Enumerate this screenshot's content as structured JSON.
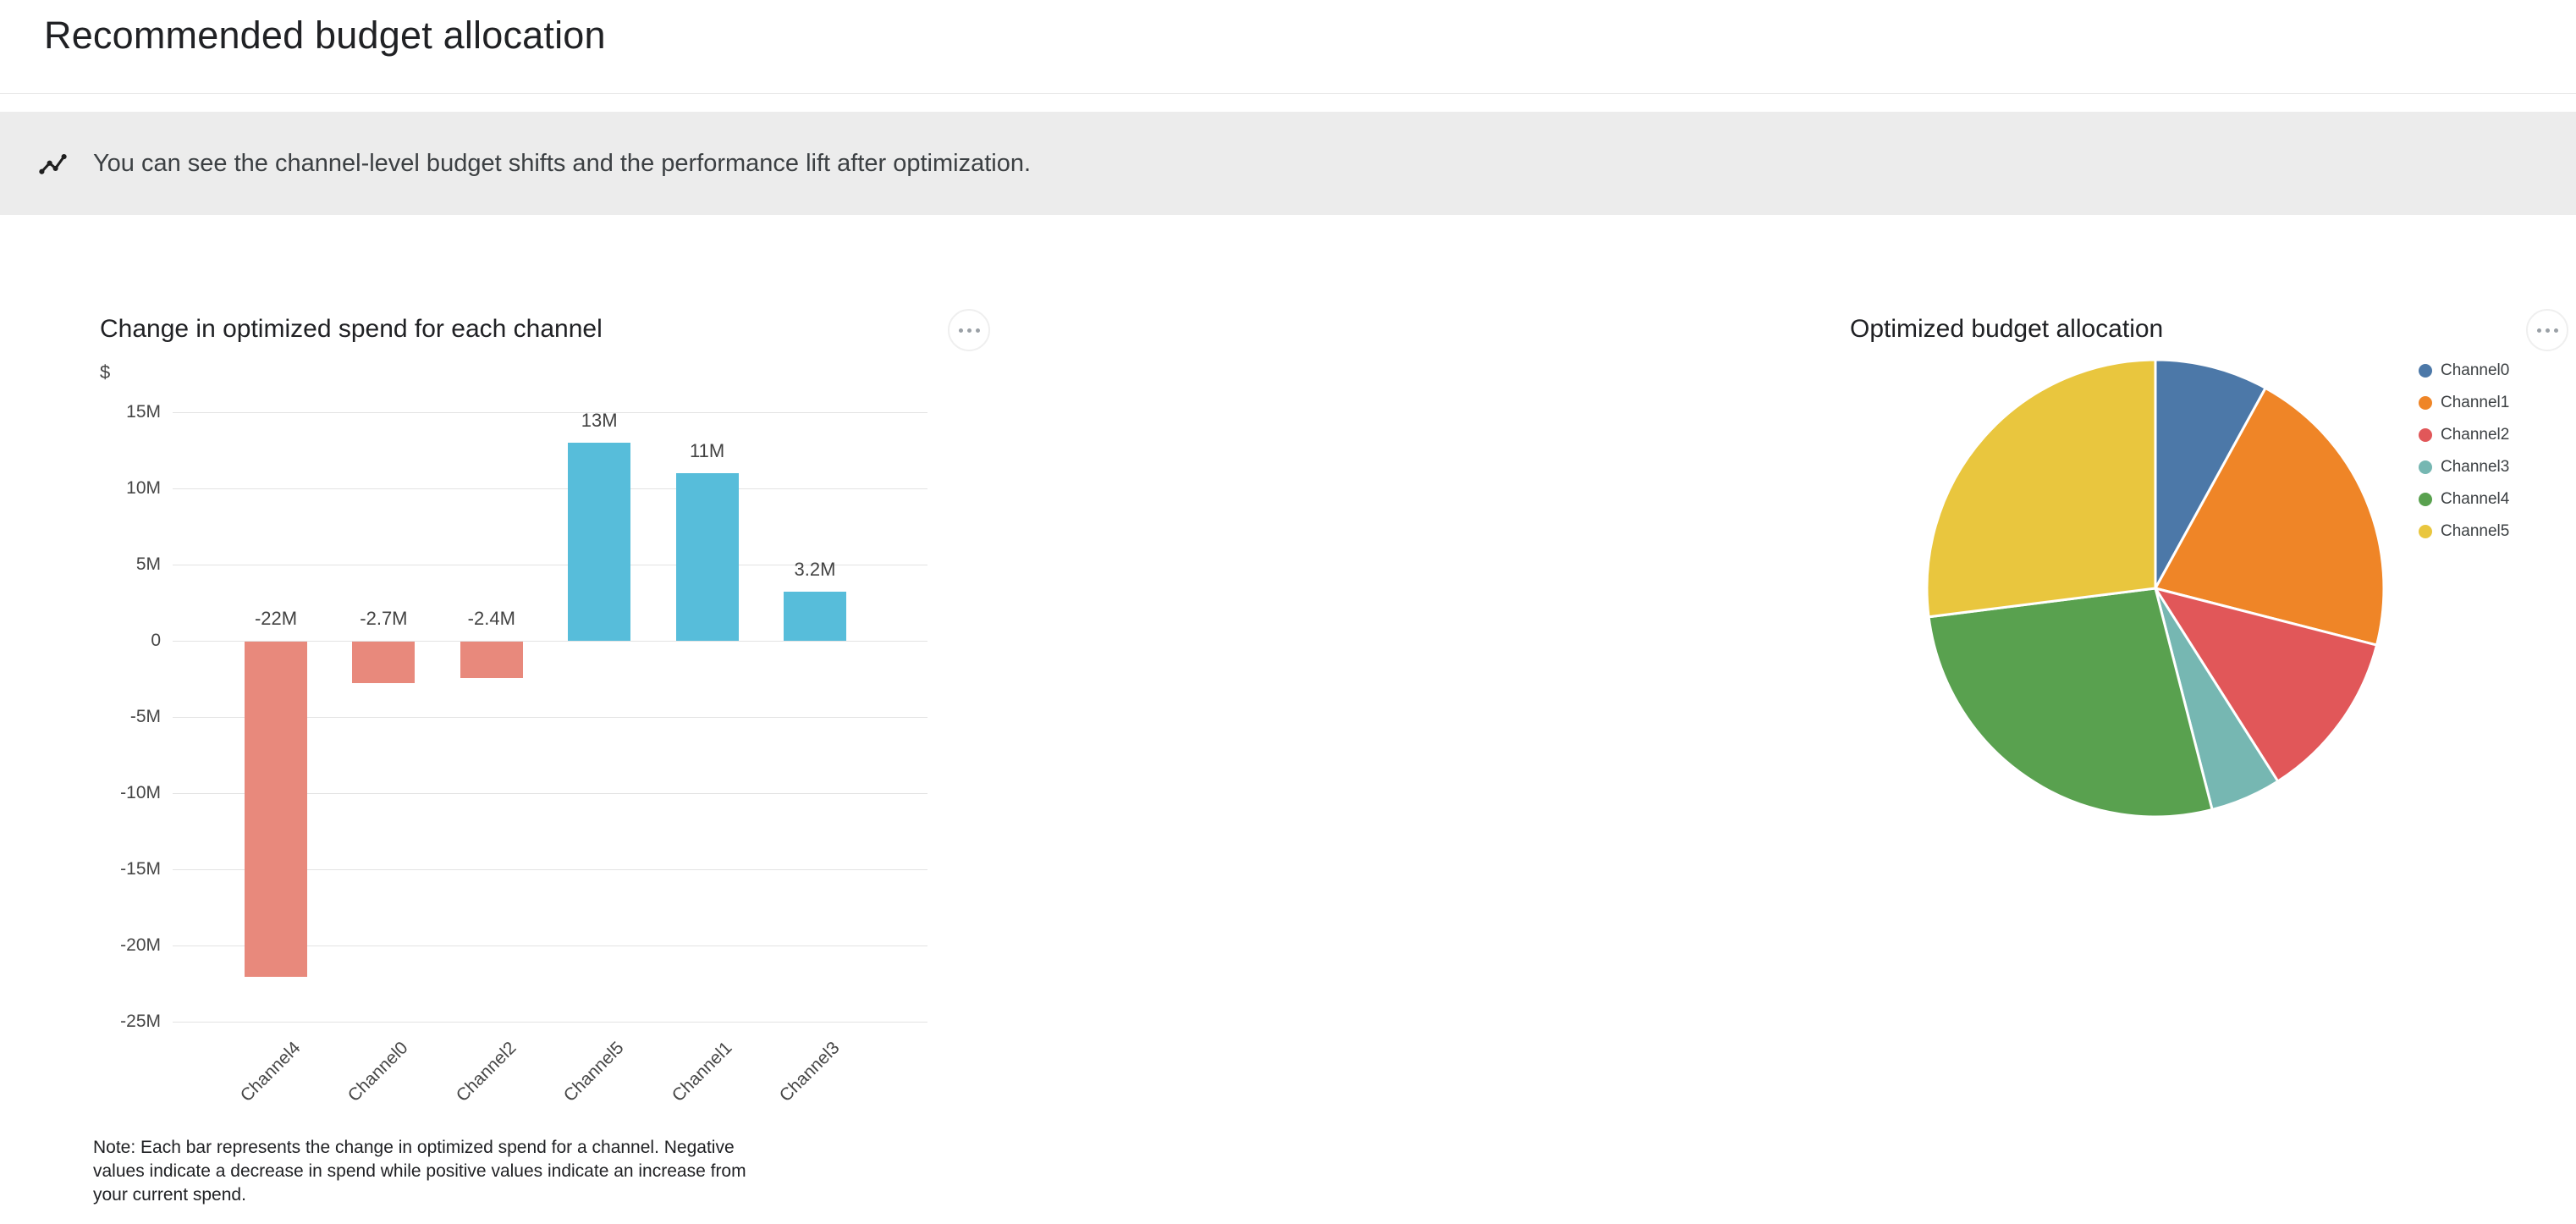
{
  "page": {
    "title": "Recommended budget allocation"
  },
  "banner": {
    "icon": "insights-icon",
    "text": "You can see the channel-level budget shifts and the performance lift after optimization."
  },
  "left_chart": {
    "title": "Change in optimized spend for each channel",
    "menu_icon": "more-options-icon",
    "note": "Note: Each bar represents the change in optimized spend for a channel. Negative values indicate a decrease in spend while positive values indicate an increase from your current spend.",
    "chart_data": {
      "type": "bar",
      "title": "Change in optimized spend for each channel",
      "xlabel": "",
      "ylabel": "$",
      "y_axis_unit_label": "$",
      "y_ticks": [
        "15M",
        "10M",
        "5M",
        "0",
        "-5M",
        "-10M",
        "-15M",
        "-20M",
        "-25M"
      ],
      "ylim": [
        -25000000,
        15000000
      ],
      "tick_interval": 5,
      "grid": true,
      "categories": [
        "Channel4",
        "Channel0",
        "Channel2",
        "Channel5",
        "Channel1",
        "Channel3"
      ],
      "values": [
        -22,
        -2.7,
        -2.4,
        13,
        11,
        3.2
      ],
      "value_unit": "M",
      "value_labels": [
        "-22M",
        "-2.7M",
        "-2.4M",
        "13M",
        "11M",
        "3.2M"
      ],
      "negative_color": "#e8897c",
      "positive_color": "#57bdda"
    }
  },
  "right_chart": {
    "title": "Optimized budget allocation",
    "menu_icon": "more-options-icon",
    "chart_data": {
      "type": "pie",
      "title": "Optimized budget allocation",
      "legend_position": "right",
      "series": [
        {
          "name": "Channel0",
          "value": 8,
          "color": "#4c78a8"
        },
        {
          "name": "Channel1",
          "value": 21,
          "color": "#ef8527"
        },
        {
          "name": "Channel2",
          "value": 12,
          "color": "#e15759"
        },
        {
          "name": "Channel3",
          "value": 5,
          "color": "#76b7b2"
        },
        {
          "name": "Channel4",
          "value": 27,
          "color": "#59a14f"
        },
        {
          "name": "Channel5",
          "value": 27,
          "color": "#e9c63e"
        }
      ]
    }
  }
}
